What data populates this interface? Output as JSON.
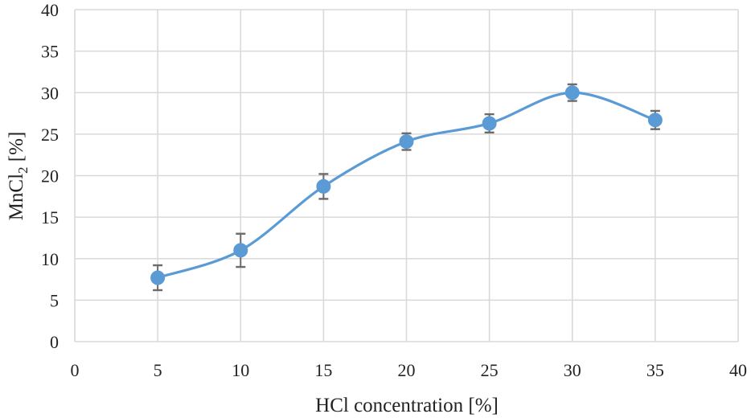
{
  "chart_data": {
    "type": "line",
    "title": "",
    "xlabel": "HCl concentration [%]",
    "ylabel": {
      "main": "MnCl",
      "subscript": "2",
      "suffix": " [%]"
    },
    "xlim": [
      0,
      40
    ],
    "ylim": [
      0,
      40
    ],
    "xticks": [
      0,
      5,
      10,
      15,
      20,
      25,
      30,
      35,
      40
    ],
    "yticks": [
      0,
      5,
      10,
      15,
      20,
      25,
      30,
      35,
      40
    ],
    "grid": true,
    "smooth": true,
    "legend": "none",
    "series": [
      {
        "color": "#5b9bd5",
        "error_bar_color": "#6b6b6b",
        "points": [
          {
            "x": 5,
            "y": 7.7,
            "err": 1.5
          },
          {
            "x": 10,
            "y": 11.0,
            "err": 2.0
          },
          {
            "x": 15,
            "y": 18.7,
            "err": 1.5
          },
          {
            "x": 20,
            "y": 24.1,
            "err": 1.0
          },
          {
            "x": 25,
            "y": 26.3,
            "err": 1.1
          },
          {
            "x": 30,
            "y": 30.0,
            "err": 1.0
          },
          {
            "x": 35,
            "y": 26.7,
            "err": 1.1
          }
        ]
      }
    ]
  }
}
